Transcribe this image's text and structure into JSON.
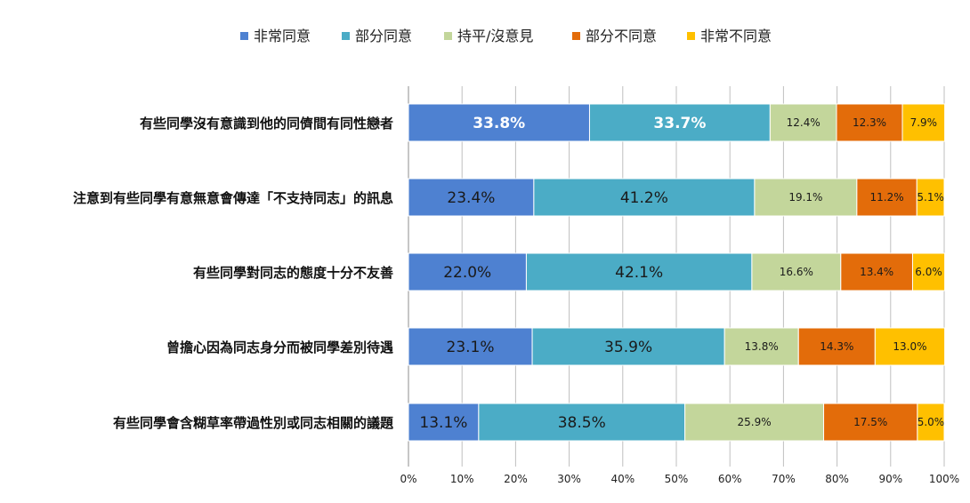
{
  "chart_data": {
    "type": "bar",
    "orientation": "horizontal",
    "stacked": true,
    "percent_stacked": true,
    "categories": [
      "有些同學沒有意識到他的同儕間有同性戀者",
      "注意到有些同學有意無意會傳達「不支持同志」的訊息",
      "有些同學對同志的態度十分不友善",
      "曾擔心因為同志身分而被同學差別待遇",
      "有些同學會含糊草率帶過性別或同志相關的議題"
    ],
    "series": [
      {
        "name": "非常同意",
        "color": "#4e81d1",
        "values": [
          33.8,
          23.4,
          22.0,
          23.1,
          13.1
        ],
        "labels": [
          "33.8%",
          "23.4%",
          "22.0%",
          "23.1%",
          "13.1%"
        ]
      },
      {
        "name": "部分同意",
        "color": "#4bacc6",
        "values": [
          33.7,
          41.2,
          42.1,
          35.9,
          38.5
        ],
        "labels": [
          "33.7%",
          "41.2%",
          "42.1%",
          "35.9%",
          "38.5%"
        ]
      },
      {
        "name": "持平/沒意見",
        "color": "#c3d69b",
        "values": [
          12.4,
          19.1,
          16.6,
          13.8,
          25.9
        ],
        "labels": [
          "12.4%",
          "19.1%",
          "16.6%",
          "13.8%",
          "25.9%"
        ]
      },
      {
        "name": "部分不同意",
        "color": "#e36c0a",
        "values": [
          12.3,
          11.2,
          13.4,
          14.3,
          17.5
        ],
        "labels": [
          "12.3%",
          "11.2%",
          "13.4%",
          "14.3%",
          "17.5%"
        ]
      },
      {
        "name": "非常不同意",
        "color": "#ffc000",
        "values": [
          7.9,
          5.1,
          6.0,
          13.0,
          5.0
        ],
        "labels": [
          "7.9%",
          "5.1%",
          "6.0%",
          "13.0%",
          "5.0%"
        ]
      }
    ],
    "x_ticks": [
      "0%",
      "10%",
      "20%",
      "30%",
      "40%",
      "50%",
      "60%",
      "70%",
      "80%",
      "90%",
      "100%"
    ],
    "xlim": [
      0,
      100
    ],
    "grid": true,
    "legend_position": "top"
  }
}
